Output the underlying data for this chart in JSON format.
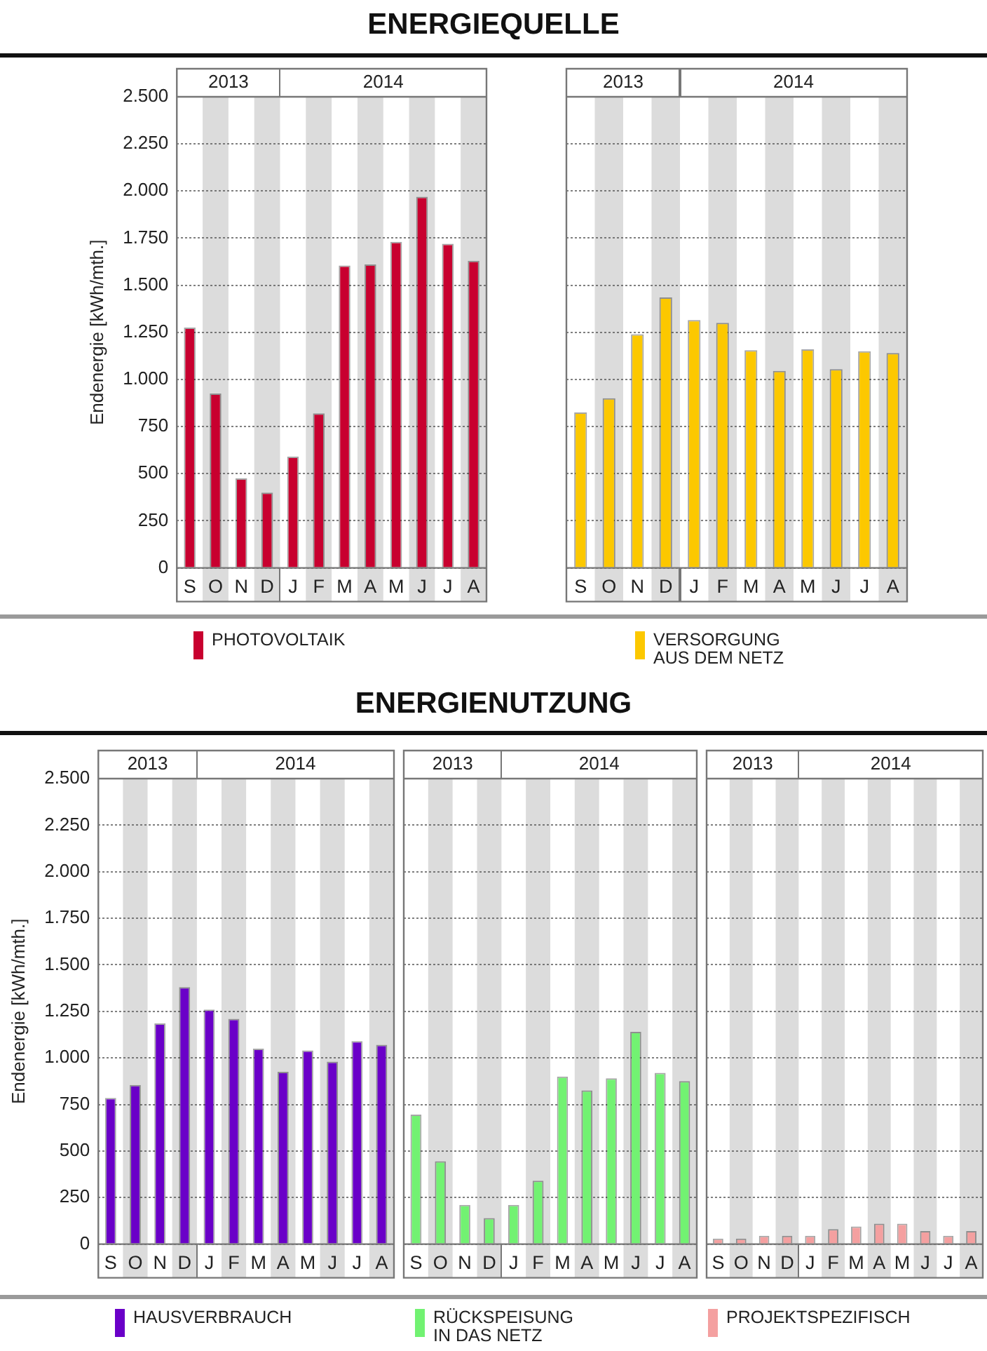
{
  "chart_data": [
    {
      "type": "bar",
      "title": "ENERGIEQUELLE",
      "ylabel": "Endenergie [kWh/mth.]",
      "categories": [
        "S",
        "O",
        "N",
        "D",
        "J",
        "F",
        "M",
        "A",
        "M",
        "J",
        "J",
        "A"
      ],
      "series": [
        {
          "name": "PHOTOVOLTAIK",
          "color": "#c8002f",
          "values": [
            1275,
            925,
            475,
            400,
            590,
            820,
            1605,
            1610,
            1730,
            1970,
            1720,
            1630
          ]
        }
      ],
      "ylim": [
        0,
        2500
      ],
      "yticks": [
        0,
        250,
        500,
        750,
        {
          "value": 1000,
          "label": "1.000"
        },
        {
          "value": 1250,
          "label": "1.250"
        },
        {
          "value": 1500,
          "label": "1.500"
        },
        {
          "value": 1750,
          "label": "1.750"
        },
        {
          "value": 2000,
          "label": "2.000"
        },
        {
          "value": 2250,
          "label": "2.250"
        },
        {
          "value": 2500,
          "label": "2.500"
        }
      ],
      "grid": "y",
      "legend": "bottom",
      "annotations": [
        "2013",
        "2014"
      ]
    },
    {
      "type": "bar",
      "categories": [
        "S",
        "O",
        "N",
        "D",
        "J",
        "F",
        "M",
        "A",
        "M",
        "J",
        "J",
        "A"
      ],
      "series": [
        {
          "name": "VERSORGUNG AUS DEM NETZ",
          "color": "#fcc800",
          "values": [
            825,
            900,
            1240,
            1435,
            1315,
            1300,
            1155,
            1045,
            1160,
            1055,
            1150,
            1140
          ]
        }
      ],
      "ylim": [
        0,
        2500
      ],
      "yticks": [
        0,
        250,
        500,
        750,
        1000,
        1250,
        1500,
        1750,
        2000,
        2250,
        2500
      ],
      "tick_labels": "x",
      "grid": "y",
      "legend": "bottom",
      "annotations": [
        "2013",
        "2014"
      ]
    },
    {
      "type": "bar",
      "ylabel": "Endenergie [kWh/mth.]",
      "categories": [
        "S",
        "O",
        "N",
        "D",
        "J",
        "F",
        "M",
        "A",
        "M",
        "J",
        "J",
        "A"
      ],
      "series": [
        {
          "name": "HAUSVERBRAUCH",
          "color": "#6a00c8",
          "values": [
            785,
            855,
            1185,
            1380,
            1260,
            1210,
            1050,
            925,
            1040,
            980,
            1090,
            1070
          ]
        }
      ],
      "ylim": [
        0,
        2500
      ],
      "yticks": [
        0,
        250,
        500,
        750,
        {
          "value": 1000,
          "label": "1.000"
        },
        {
          "value": 1250,
          "label": "1.250"
        },
        {
          "value": 1500,
          "label": "1.500"
        },
        {
          "value": 1750,
          "label": "1.750"
        },
        {
          "value": 2000,
          "label": "2.000"
        },
        {
          "value": 2250,
          "label": "2.250"
        },
        {
          "value": 2500,
          "label": "2.500"
        }
      ],
      "grid": "y",
      "legend": "bottom",
      "annotations": [
        "2013",
        "2014"
      ]
    },
    {
      "type": "bar",
      "title": "ENERGIENUTZUNG",
      "categories": [
        "S",
        "O",
        "N",
        "D",
        "J",
        "F",
        "M",
        "A",
        "M",
        "J",
        "J",
        "A"
      ],
      "series": [
        {
          "name": "RÜCKSPEISUNG IN DAS NETZ",
          "color": "#72f272",
          "values": [
            695,
            445,
            210,
            140,
            210,
            340,
            900,
            825,
            890,
            1140,
            920,
            875
          ]
        }
      ],
      "ylim": [
        0,
        2500
      ],
      "yticks": [
        0,
        250,
        500,
        750,
        1000,
        1250,
        1500,
        1750,
        2000,
        2250,
        2500
      ],
      "tick_labels": "x",
      "grid": "y",
      "legend": "bottom",
      "annotations": [
        "2013",
        "2014"
      ]
    },
    {
      "type": "bar",
      "categories": [
        "S",
        "O",
        "N",
        "D",
        "J",
        "F",
        "M",
        "A",
        "M",
        "J",
        "J",
        "A"
      ],
      "series": [
        {
          "name": "PROJEKTSPEZIFISCH",
          "color": "#f4a0a0",
          "values": [
            30,
            30,
            45,
            45,
            45,
            80,
            95,
            110,
            110,
            70,
            45,
            70
          ]
        }
      ],
      "ylim": [
        0,
        2500
      ],
      "yticks": [
        0,
        250,
        500,
        750,
        1000,
        1250,
        1500,
        1750,
        2000,
        2250,
        2500
      ],
      "tick_labels": "x",
      "grid": "y",
      "legend": "bottom",
      "annotations": [
        "2013",
        "2014"
      ]
    }
  ]
}
